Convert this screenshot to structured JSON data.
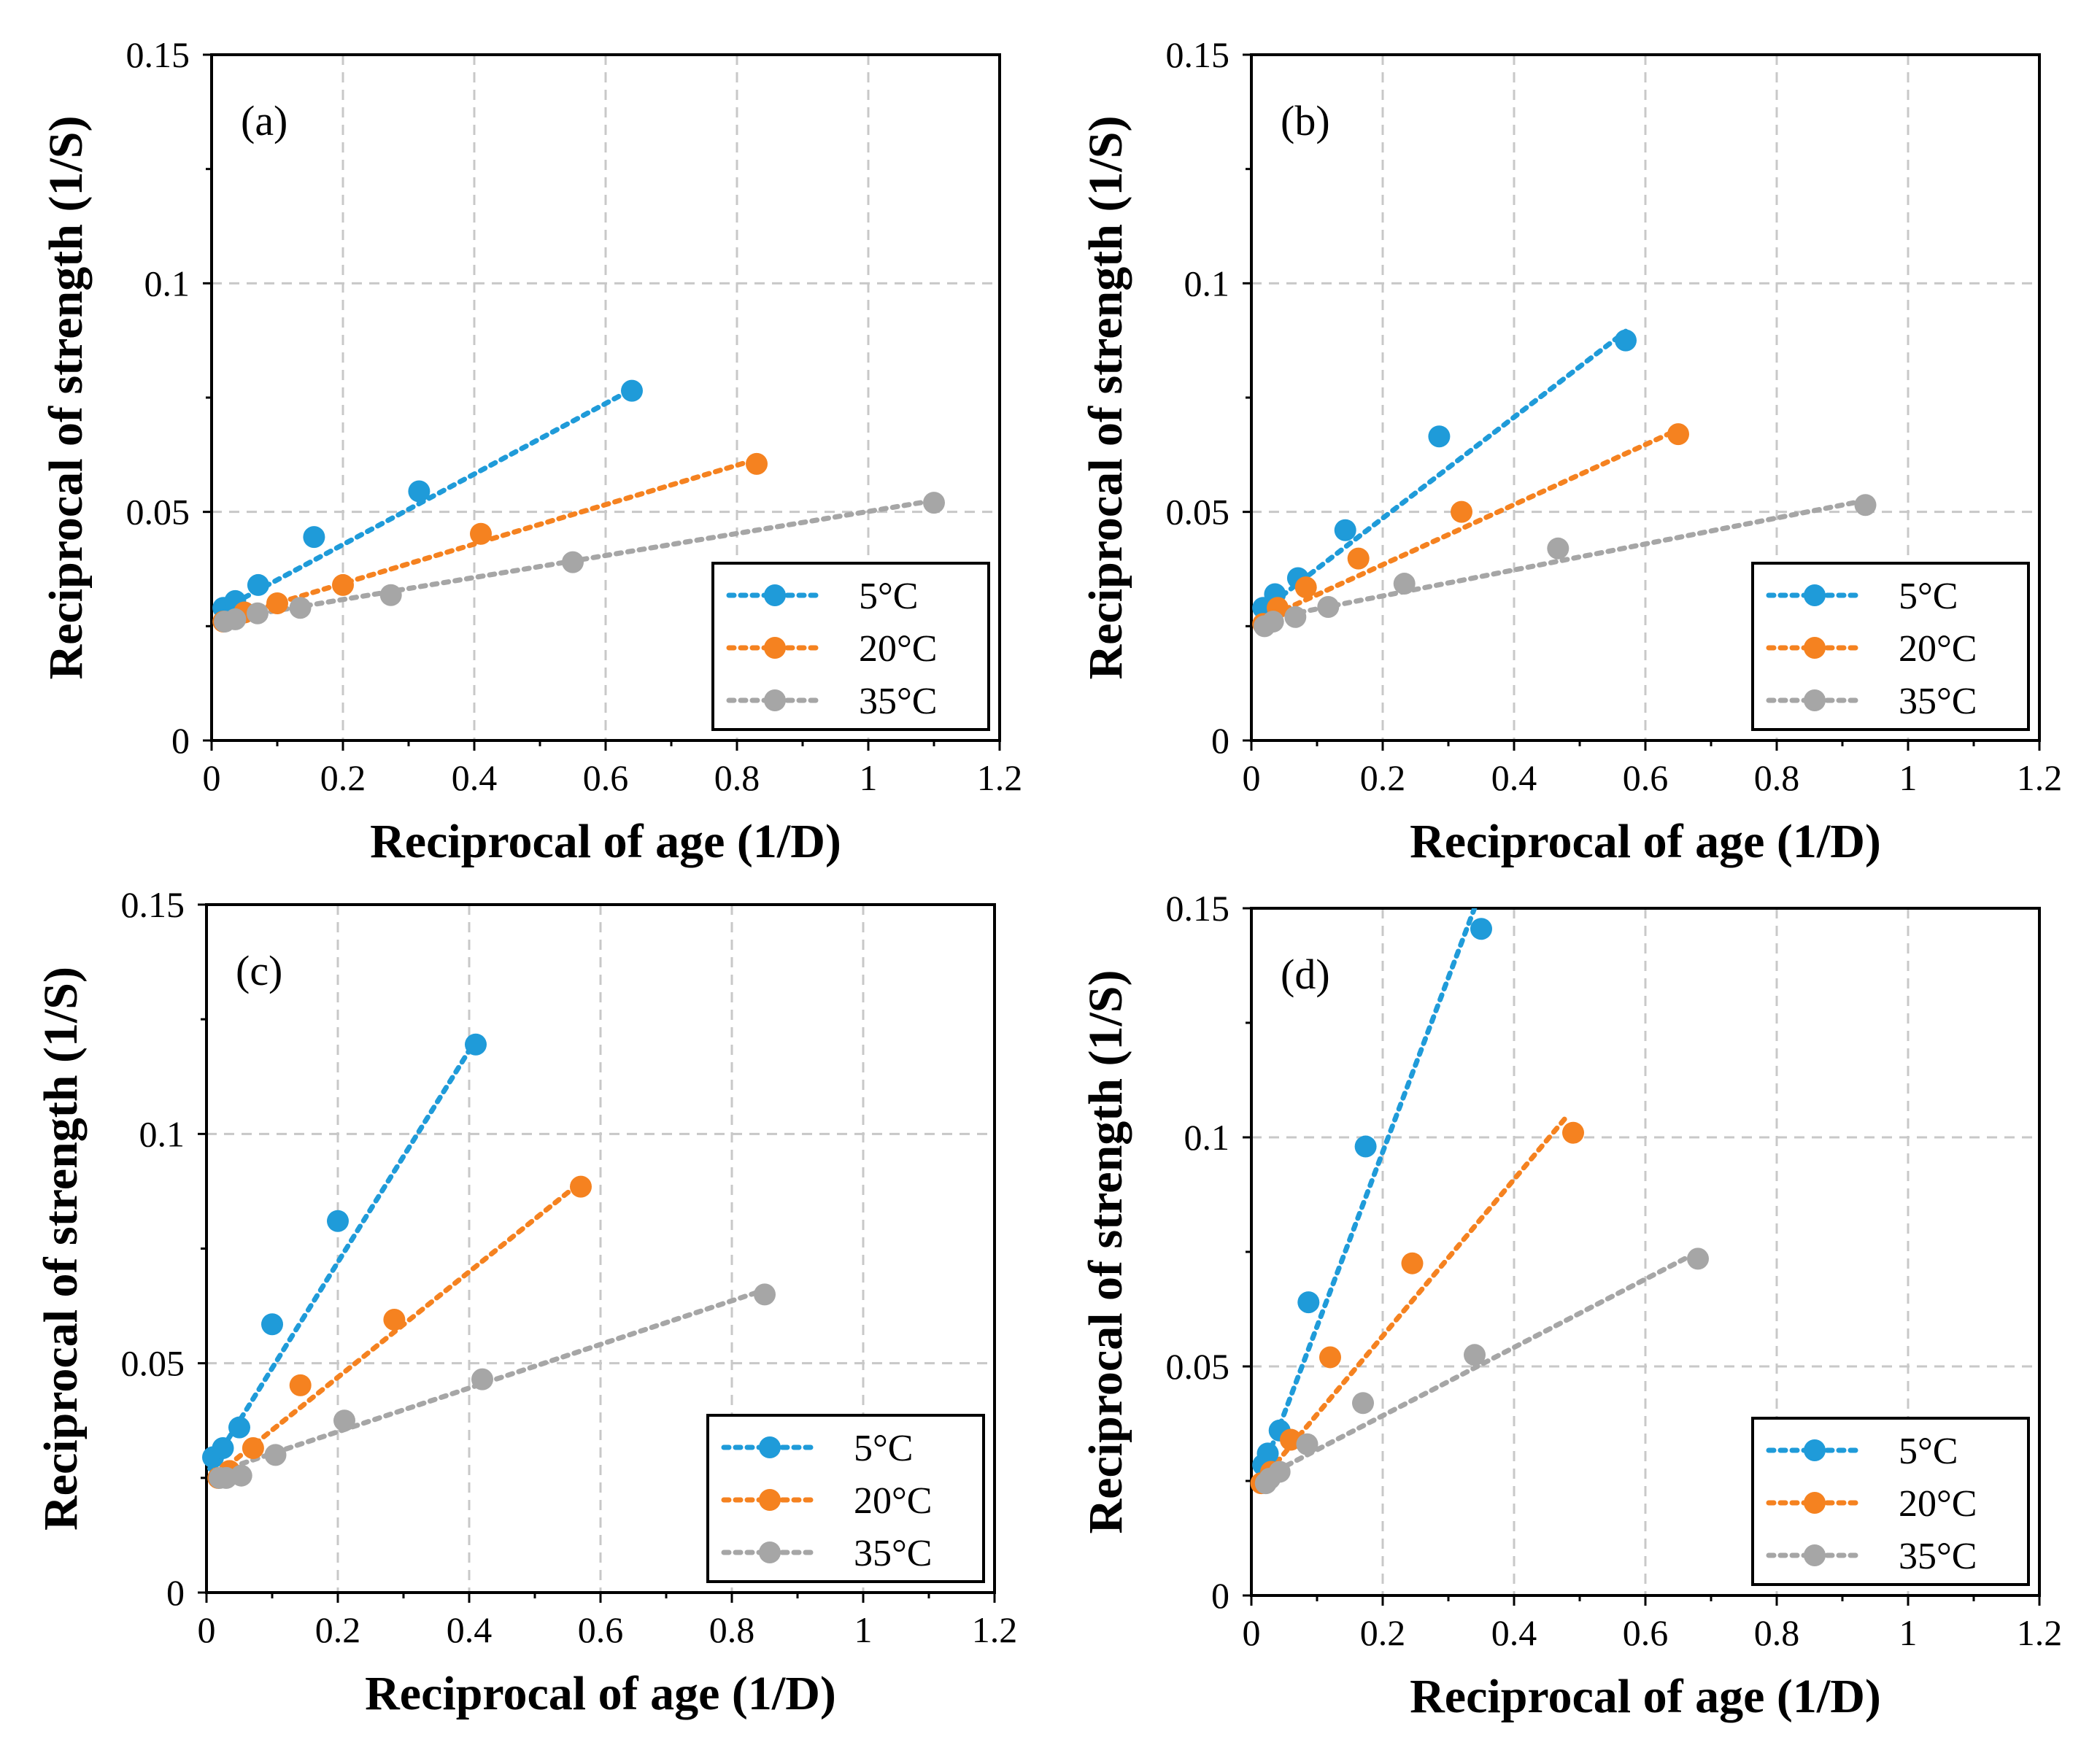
{
  "colors": {
    "s5": "#1f9bd9",
    "s20": "#f58220",
    "s35": "#a6a6a6"
  },
  "chart_data": [
    {
      "type": "scatter",
      "panel": "(a)",
      "xlabel": "Reciprocal of age (1/D)",
      "ylabel": "Reciprocal of strength (1/S)",
      "xlim": [
        0,
        1.2
      ],
      "ylim": [
        0,
        0.15
      ],
      "xticks": [
        "0",
        "0.2",
        "0.4",
        "0.6",
        "0.8",
        "1",
        "1.2"
      ],
      "yticks": [
        "0",
        "0.05",
        "0.1",
        "0.15"
      ],
      "legend": "bottom-right",
      "series": [
        {
          "name": "5°C",
          "color_key": "s5",
          "points": [
            [
              0.018,
              0.029
            ],
            [
              0.036,
              0.0305
            ],
            [
              0.071,
              0.034
            ],
            [
              0.156,
              0.0445
            ],
            [
              0.316,
              0.0545
            ],
            [
              0.64,
              0.0765
            ]
          ],
          "trend": [
            [
              0.018,
              0.0288
            ],
            [
              0.64,
              0.0768
            ]
          ]
        },
        {
          "name": "20°C",
          "color_key": "s20",
          "points": [
            [
              0.018,
              0.026
            ],
            [
              0.05,
              0.028
            ],
            [
              0.1,
              0.03
            ],
            [
              0.2,
              0.034
            ],
            [
              0.41,
              0.0452
            ],
            [
              0.83,
              0.0605
            ]
          ],
          "trend": [
            [
              0.018,
              0.0265
            ],
            [
              0.83,
              0.0615
            ]
          ]
        },
        {
          "name": "35°C",
          "color_key": "s35",
          "points": [
            [
              0.02,
              0.026
            ],
            [
              0.036,
              0.0265
            ],
            [
              0.07,
              0.0278
            ],
            [
              0.135,
              0.029
            ],
            [
              0.273,
              0.0318
            ],
            [
              0.55,
              0.039
            ],
            [
              1.1,
              0.052
            ]
          ],
          "trend": [
            [
              0.02,
              0.0265
            ],
            [
              1.1,
              0.0525
            ]
          ]
        }
      ]
    },
    {
      "type": "scatter",
      "panel": "(b)",
      "xlabel": "Reciprocal of age (1/D)",
      "ylabel": "Reciprocal of strength (1/S)",
      "xlim": [
        0,
        1.2
      ],
      "ylim": [
        0,
        0.15
      ],
      "xticks": [
        "0",
        "0.2",
        "0.4",
        "0.6",
        "0.8",
        "1",
        "1.2"
      ],
      "yticks": [
        "0",
        "0.05",
        "0.1",
        "0.15"
      ],
      "legend": "bottom-right",
      "series": [
        {
          "name": "5°C",
          "color_key": "s5",
          "points": [
            [
              0.018,
              0.029
            ],
            [
              0.036,
              0.032
            ],
            [
              0.071,
              0.0355
            ],
            [
              0.143,
              0.046
            ],
            [
              0.286,
              0.0665
            ],
            [
              0.57,
              0.0875
            ]
          ],
          "trend": [
            [
              0.018,
              0.0285
            ],
            [
              0.57,
              0.0895
            ]
          ]
        },
        {
          "name": "20°C",
          "color_key": "s20",
          "points": [
            [
              0.018,
              0.0255
            ],
            [
              0.04,
              0.029
            ],
            [
              0.083,
              0.0335
            ],
            [
              0.163,
              0.0398
            ],
            [
              0.32,
              0.05
            ],
            [
              0.65,
              0.067
            ]
          ],
          "trend": [
            [
              0.018,
              0.0265
            ],
            [
              0.65,
              0.068
            ]
          ]
        },
        {
          "name": "35°C",
          "color_key": "s35",
          "points": [
            [
              0.02,
              0.025
            ],
            [
              0.033,
              0.026
            ],
            [
              0.067,
              0.027
            ],
            [
              0.117,
              0.0292
            ],
            [
              0.233,
              0.0343
            ],
            [
              0.467,
              0.042
            ],
            [
              0.935,
              0.0515
            ]
          ],
          "trend": [
            [
              0.02,
              0.0265
            ],
            [
              0.935,
              0.0525
            ]
          ]
        }
      ]
    },
    {
      "type": "scatter",
      "panel": "(c)",
      "xlabel": "Reciprocal of age (1/D)",
      "ylabel": "Reciprocal of strength (1/S)",
      "xlim": [
        0,
        1.2
      ],
      "ylim": [
        0,
        0.15
      ],
      "xticks": [
        "0",
        "0.2",
        "0.4",
        "0.6",
        "0.8",
        "1",
        "1.2"
      ],
      "yticks": [
        "0",
        "0.05",
        "0.1",
        "0.15"
      ],
      "legend": "bottom-right",
      "series": [
        {
          "name": "5°C",
          "color_key": "s5",
          "points": [
            [
              0.01,
              0.0295
            ],
            [
              0.025,
              0.0315
            ],
            [
              0.05,
              0.036
            ],
            [
              0.1,
              0.0585
            ],
            [
              0.2,
              0.081
            ],
            [
              0.41,
              0.1195
            ]
          ],
          "trend": [
            [
              0.005,
              0.027
            ],
            [
              0.41,
              0.1205
            ]
          ]
        },
        {
          "name": "20°C",
          "color_key": "s20",
          "points": [
            [
              0.018,
              0.025
            ],
            [
              0.035,
              0.0265
            ],
            [
              0.071,
              0.0315
            ],
            [
              0.143,
              0.0452
            ],
            [
              0.286,
              0.0595
            ],
            [
              0.57,
              0.0885
            ]
          ],
          "trend": [
            [
              0.018,
              0.026
            ],
            [
              0.57,
              0.0895
            ]
          ]
        },
        {
          "name": "35°C",
          "color_key": "s35",
          "points": [
            [
              0.02,
              0.025
            ],
            [
              0.03,
              0.025
            ],
            [
              0.053,
              0.0255
            ],
            [
              0.105,
              0.03
            ],
            [
              0.21,
              0.0375
            ],
            [
              0.42,
              0.0465
            ],
            [
              0.85,
              0.065
            ]
          ],
          "trend": [
            [
              0.02,
              0.0265
            ],
            [
              0.85,
              0.066
            ]
          ]
        }
      ]
    },
    {
      "type": "scatter",
      "panel": "(d)",
      "xlabel": "Reciprocal of age (1/D)",
      "ylabel": "Reciprocal of strength (1/S)",
      "xlim": [
        0,
        1.2
      ],
      "ylim": [
        0,
        0.15
      ],
      "xticks": [
        "0",
        "0.2",
        "0.4",
        "0.6",
        "0.8",
        "1",
        "1.2"
      ],
      "yticks": [
        "0",
        "0.05",
        "0.1",
        "0.15"
      ],
      "legend": "bottom-right",
      "series": [
        {
          "name": "5°C",
          "color_key": "s5",
          "points": [
            [
              0.018,
              0.0285
            ],
            [
              0.025,
              0.031
            ],
            [
              0.043,
              0.036
            ],
            [
              0.087,
              0.064
            ],
            [
              0.174,
              0.098
            ],
            [
              0.35,
              0.1455
            ]
          ],
          "trend": [
            [
              0.018,
              0.0275
            ],
            [
              0.345,
              0.152
            ]
          ]
        },
        {
          "name": "20°C",
          "color_key": "s20",
          "points": [
            [
              0.015,
              0.0245
            ],
            [
              0.03,
              0.027
            ],
            [
              0.06,
              0.034
            ],
            [
              0.12,
              0.052
            ],
            [
              0.245,
              0.0725
            ],
            [
              0.49,
              0.101
            ]
          ],
          "trend": [
            [
              0.015,
              0.025
            ],
            [
              0.48,
              0.1045
            ]
          ]
        },
        {
          "name": "35°C",
          "color_key": "s35",
          "points": [
            [
              0.022,
              0.0245
            ],
            [
              0.028,
              0.0255
            ],
            [
              0.043,
              0.027
            ],
            [
              0.085,
              0.033
            ],
            [
              0.17,
              0.042
            ],
            [
              0.34,
              0.0525
            ],
            [
              0.68,
              0.0735
            ]
          ],
          "trend": [
            [
              0.022,
              0.026
            ],
            [
              0.68,
              0.075
            ]
          ]
        }
      ]
    }
  ]
}
